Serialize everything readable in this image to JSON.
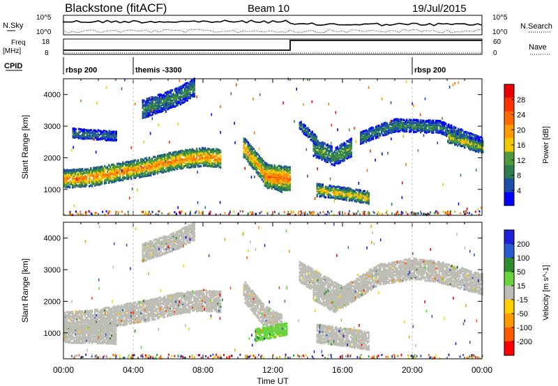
{
  "header": {
    "station": "Blackstone (fitACF)",
    "beam": "Beam 10",
    "date": "19/Jul/2015"
  },
  "panel_labels": {
    "nsky": "N.Sky",
    "nsearch": "N.Search",
    "freq_line1": "Freq",
    "freq_line2": "[MHz]",
    "nave": "Nave",
    "cpid": "CPID",
    "nsky_ticks": [
      "10^5",
      "10^0"
    ],
    "nsearch_ticks": [
      "10^5",
      "10^0"
    ],
    "freq_ticks": [
      "18",
      "8"
    ],
    "nave_ticks": [
      "60",
      "0"
    ]
  },
  "cpid_segments": [
    {
      "label": "rbsp 200",
      "start_hour": 0
    },
    {
      "label": "themis -3300",
      "start_hour": 4
    },
    {
      "label": "rbsp 200",
      "start_hour": 20
    }
  ],
  "colors": {
    "power": [
      "#0000ff",
      "#1e4fa8",
      "#2e7d4e",
      "#4f9a3a",
      "#f0c800",
      "#ff9900",
      "#ff6a00",
      "#ff3300",
      "#e80000"
    ],
    "velocity": [
      "#2020d8",
      "#2a5ad0",
      "#2e8b2e",
      "#6ad23c",
      "#bdbdb6",
      "#ffd000",
      "#ff9900",
      "#ff5a00",
      "#ff0000"
    ]
  },
  "chart_data": [
    {
      "type": "heatmap",
      "title": "",
      "xlabel": "Time UT",
      "ylabel": "Slant Range [km]",
      "x_ticks": [
        "00:00",
        "04:00",
        "08:00",
        "12:00",
        "16:00",
        "20:00",
        "00:00"
      ],
      "x_range_hours": [
        0,
        24
      ],
      "y_ticks": [
        1000,
        2000,
        3000,
        4000
      ],
      "ylim": [
        180,
        4500
      ],
      "colorbar_label": "Power [dB]",
      "colorbar_ticks": [
        4,
        8,
        12,
        16,
        20,
        24,
        28
      ],
      "colorbar_range": [
        0,
        32
      ],
      "echo_bands": [
        {
          "t": [
            0,
            1.5,
            3,
            5,
            6.5,
            8,
            9
          ],
          "range": [
            1300,
            1350,
            1500,
            1700,
            1900,
            2000,
            1950
          ],
          "width": 250,
          "power": 22
        },
        {
          "t": [
            0.5,
            3
          ],
          "range": [
            2750,
            2650
          ],
          "width": 150,
          "power": 8
        },
        {
          "t": [
            4.5,
            6.5,
            7.5
          ],
          "range": [
            3500,
            3900,
            4200
          ],
          "width": 250,
          "power": 10
        },
        {
          "t": [
            10.3,
            11.5,
            12.5
          ],
          "range": [
            2300,
            1500,
            1200
          ],
          "width": 300,
          "power": 20
        },
        {
          "t": [
            11.5,
            13
          ],
          "range": [
            1400,
            1300
          ],
          "width": 350,
          "power": 24
        },
        {
          "t": [
            14.3,
            15.5,
            16.5
          ],
          "range": [
            2300,
            2000,
            2300
          ],
          "width": 250,
          "power": 12
        },
        {
          "t": [
            13.5,
            14.5
          ],
          "range": [
            3000,
            2500
          ],
          "width": 150,
          "power": 10
        },
        {
          "t": [
            14.5,
            16.5,
            17.5
          ],
          "range": [
            950,
            800,
            700
          ],
          "width": 200,
          "power": 18
        },
        {
          "t": [
            17,
            19,
            21.5,
            24
          ],
          "range": [
            2600,
            3000,
            2950,
            2400
          ],
          "width": 200,
          "power": 10
        },
        {
          "t": [
            22,
            24
          ],
          "range": [
            2650,
            2300
          ],
          "width": 200,
          "power": 16
        }
      ]
    },
    {
      "type": "heatmap",
      "title": "",
      "xlabel": "Time UT",
      "ylabel": "Slant Range [km]",
      "x_ticks": [
        "00:00",
        "04:00",
        "08:00",
        "12:00",
        "16:00",
        "20:00",
        "00:00"
      ],
      "x_range_hours": [
        0,
        24
      ],
      "y_ticks": [
        1000,
        2000,
        3000,
        4000
      ],
      "ylim": [
        180,
        4500
      ],
      "colorbar_label": "Velocity [m s^-1]",
      "colorbar_ticks": [
        200,
        100,
        50,
        15,
        -15,
        -50,
        -100,
        -200
      ],
      "colorbar_range": [
        -250,
        250
      ],
      "echo_bands": [
        {
          "t": [
            0,
            1.5,
            3,
            5,
            6.5,
            8,
            9
          ],
          "range": [
            1300,
            1350,
            1500,
            1700,
            1900,
            2000,
            1950
          ],
          "width": 300,
          "velocity": 0
        },
        {
          "t": [
            0,
            3
          ],
          "range": [
            950,
            900
          ],
          "width": 250,
          "velocity": 0
        },
        {
          "t": [
            4.5,
            6.5,
            7.5
          ],
          "range": [
            3500,
            3900,
            4200
          ],
          "width": 250,
          "velocity": 0
        },
        {
          "t": [
            10.3,
            11.5,
            12.5
          ],
          "range": [
            2300,
            1500,
            1200
          ],
          "width": 300,
          "velocity": 0
        },
        {
          "t": [
            13.5,
            16,
            18,
            20,
            21.5,
            24
          ],
          "range": [
            2900,
            2100,
            2800,
            3000,
            2900,
            2500
          ],
          "width": 300,
          "velocity": 0
        },
        {
          "t": [
            14.3,
            15.5,
            16.5
          ],
          "range": [
            2300,
            1900,
            2300
          ],
          "width": 250,
          "velocity": 0
        },
        {
          "t": [
            14.5,
            16.5,
            17.5
          ],
          "range": [
            950,
            800,
            700
          ],
          "width": 250,
          "velocity": 0
        },
        {
          "t": [
            11,
            12.8
          ],
          "range": [
            900,
            1100
          ],
          "width": 200,
          "velocity": 60
        }
      ]
    }
  ]
}
